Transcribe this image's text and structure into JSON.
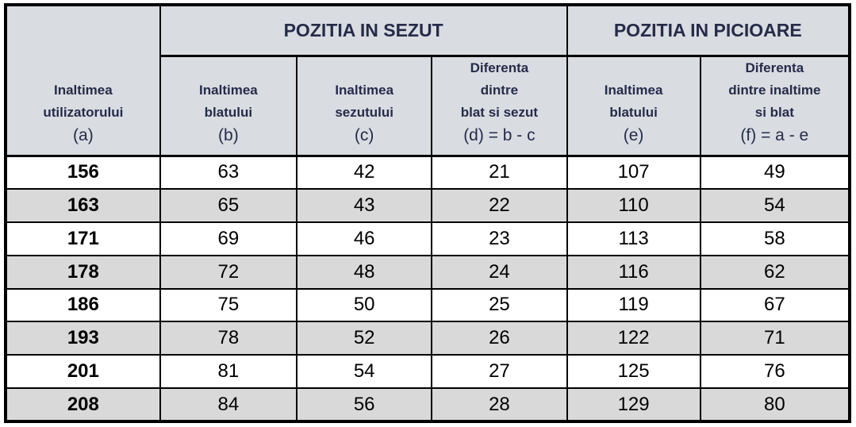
{
  "table": {
    "groups": [
      {
        "label": "POZITIA IN SEZUT",
        "span": 3
      },
      {
        "label": "POZITIA IN PICIOARE",
        "span": 2
      }
    ],
    "columns": [
      {
        "label": "Inaltimea\nutilizatorului",
        "formula": "(a)"
      },
      {
        "label": "Inaltimea\nblatului",
        "formula": "(b)"
      },
      {
        "label": "Inaltimea\nsezutului",
        "formula": "(c)"
      },
      {
        "label": "Diferenta\ndintre\nblat si sezut",
        "formula": "(d) = b - c"
      },
      {
        "label": "Inaltimea\nblatului",
        "formula": "(e)"
      },
      {
        "label": "Diferenta\ndintre inaltime\nsi blat",
        "formula": "(f) = a - e"
      }
    ],
    "rows": [
      [
        "156",
        "63",
        "42",
        "21",
        "107",
        "49"
      ],
      [
        "163",
        "65",
        "43",
        "22",
        "110",
        "54"
      ],
      [
        "171",
        "69",
        "46",
        "23",
        "113",
        "58"
      ],
      [
        "178",
        "72",
        "48",
        "24",
        "116",
        "62"
      ],
      [
        "186",
        "75",
        "50",
        "25",
        "119",
        "67"
      ],
      [
        "193",
        "78",
        "52",
        "26",
        "122",
        "71"
      ],
      [
        "201",
        "81",
        "54",
        "27",
        "125",
        "76"
      ],
      [
        "208",
        "84",
        "56",
        "28",
        "129",
        "80"
      ]
    ],
    "colors": {
      "header_bg": "#d9dce1",
      "header_text": "#262b49",
      "row_bg": "#ffffff",
      "row_alt_bg": "#d9d9d9",
      "border": "#000000"
    }
  }
}
